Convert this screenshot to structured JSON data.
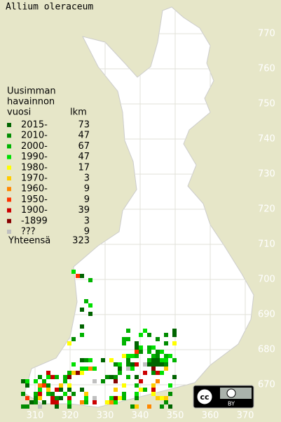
{
  "title": "Allium oleraceum",
  "legend": {
    "header": [
      "Uusimman",
      "havainnon",
      "vuosi"
    ],
    "count_header": "lkm",
    "entries": [
      {
        "label": "2015-",
        "count": 73,
        "color": "#006400"
      },
      {
        "label": "2010-",
        "count": 47,
        "color": "#008c00"
      },
      {
        "label": "2000-",
        "count": 67,
        "color": "#00b400"
      },
      {
        "label": "1990-",
        "count": 47,
        "color": "#00e000"
      },
      {
        "label": "1980-",
        "count": 17,
        "color": "#ffff00"
      },
      {
        "label": "1970-",
        "count": 3,
        "color": "#ffcc00"
      },
      {
        "label": "1960-",
        "count": 9,
        "color": "#ff8800"
      },
      {
        "label": "1950-",
        "count": 9,
        "color": "#ff3300"
      },
      {
        "label": "1900-",
        "count": 39,
        "color": "#cc0000"
      },
      {
        "label": "-1899",
        "count": 3,
        "color": "#880000"
      },
      {
        "label": "???",
        "count": 9,
        "color": "#c0c0c0"
      }
    ],
    "total_label": "Yhteensä",
    "total": 323
  },
  "x_labels": [
    310,
    320,
    330,
    340,
    350,
    360,
    370
  ],
  "y_labels": [
    670,
    680,
    690,
    700,
    710,
    720,
    730,
    740,
    750,
    760,
    770
  ],
  "license": {
    "icon": "cc",
    "badge": "BY"
  }
}
